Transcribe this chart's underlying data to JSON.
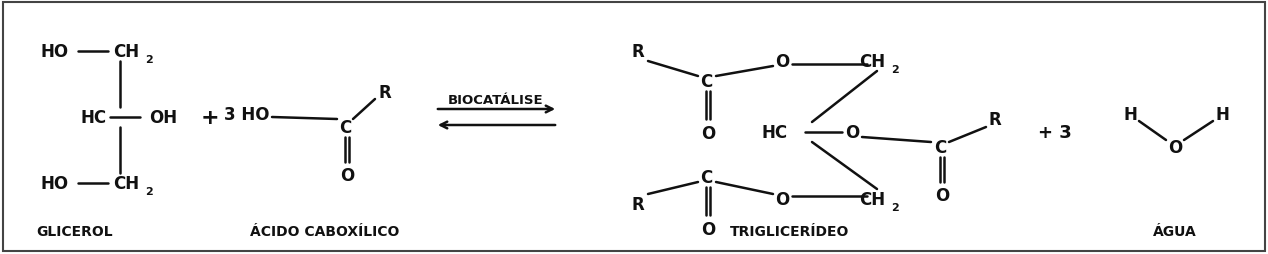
{
  "bg_color": "#ffffff",
  "border_color": "#444444",
  "text_color": "#111111",
  "figsize": [
    12.68,
    2.55
  ],
  "dpi": 100,
  "glicerol_label": "GLICEROL",
  "acid_label": "ÁCIDO CABOXÍLICO",
  "trigly_label": "TRIGLICERÍDEO",
  "agua_label": "ÁGUA",
  "biocatalise": "BIOCATÁLISE"
}
